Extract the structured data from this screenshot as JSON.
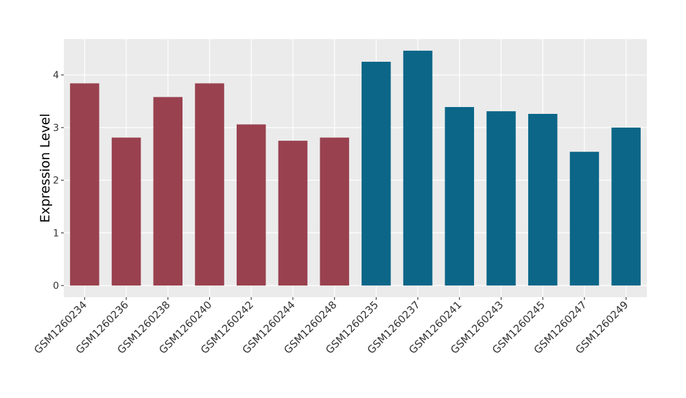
{
  "chart_data": {
    "type": "bar",
    "y_label": "Expression Level",
    "categories": [
      "GSM1260234",
      "GSM1260236",
      "GSM1260238",
      "GSM1260240",
      "GSM1260242",
      "GSM1260244",
      "GSM1260248",
      "GSM1260235",
      "GSM1260237",
      "GSM1260241",
      "GSM1260243",
      "GSM1260245",
      "GSM1260247",
      "GSM1260249"
    ],
    "values": [
      3.84,
      2.81,
      3.58,
      3.84,
      3.06,
      2.75,
      2.81,
      4.25,
      4.46,
      3.39,
      3.31,
      3.26,
      2.54,
      3.0
    ],
    "colors": [
      "#99414f",
      "#99414f",
      "#99414f",
      "#99414f",
      "#99414f",
      "#99414f",
      "#99414f",
      "#0b6688",
      "#0b6688",
      "#0b6688",
      "#0b6688",
      "#0b6688",
      "#0b6688",
      "#0b6688"
    ],
    "ylim": [
      -0.22,
      4.68
    ],
    "yticks": [
      0,
      1,
      2,
      3,
      4
    ],
    "grid": true
  }
}
